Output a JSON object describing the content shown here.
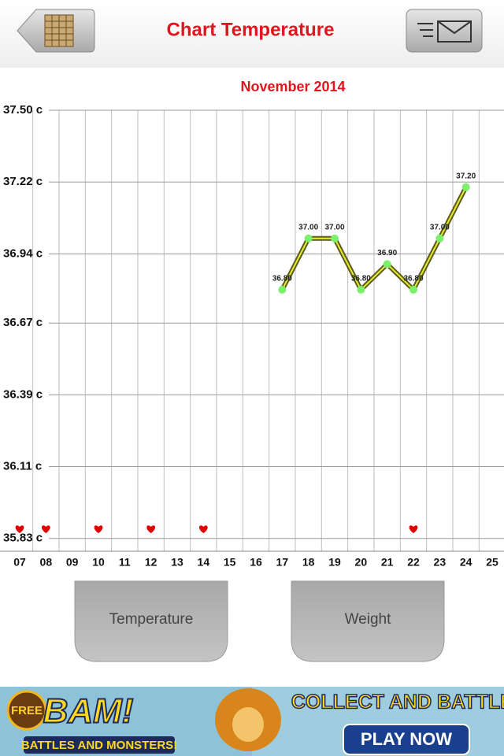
{
  "header": {
    "title": "Chart Temperature"
  },
  "chart_data": {
    "type": "line",
    "title": "November 2014",
    "categories": [
      "07",
      "08",
      "09",
      "10",
      "11",
      "12",
      "13",
      "14",
      "15",
      "16",
      "17",
      "18",
      "19",
      "20",
      "21",
      "22",
      "23",
      "24",
      "25"
    ],
    "series": [
      {
        "color": "#5b5b1c",
        "values": [
          null,
          null,
          null,
          null,
          null,
          null,
          null,
          null,
          null,
          null,
          36.8,
          37.0,
          37.0,
          36.8,
          36.9,
          36.8,
          37.0,
          37.2,
          null
        ],
        "value_labels": [
          null,
          null,
          null,
          null,
          null,
          null,
          null,
          null,
          null,
          null,
          "36.80",
          "37.00",
          "37.00",
          "36.80",
          "36.90",
          "36.80",
          "37.00",
          "37.20",
          null
        ]
      }
    ],
    "ylim": [
      35.78,
      37.5
    ],
    "yticks": [
      {
        "value": 37.5,
        "label": "37.50 c"
      },
      {
        "value": 37.22,
        "label": "37.22 c"
      },
      {
        "value": 36.94,
        "label": "36.94 c"
      },
      {
        "value": 36.67,
        "label": "36.67 c"
      },
      {
        "value": 36.39,
        "label": "36.39 c"
      },
      {
        "value": 36.11,
        "label": "36.11 c"
      },
      {
        "value": 35.83,
        "label": "35.83 c"
      }
    ],
    "grid": true,
    "heart_days": [
      0,
      1,
      3,
      5,
      7,
      15
    ]
  },
  "buttons": [
    "Temperature",
    "Weight"
  ],
  "ad": {
    "badge": "FREE",
    "logo": "BAM!",
    "tagline": "BATTLES AND MONSTERS!",
    "headline": "COLLECT AND BATTLE!",
    "cta": "PLAY NOW"
  }
}
